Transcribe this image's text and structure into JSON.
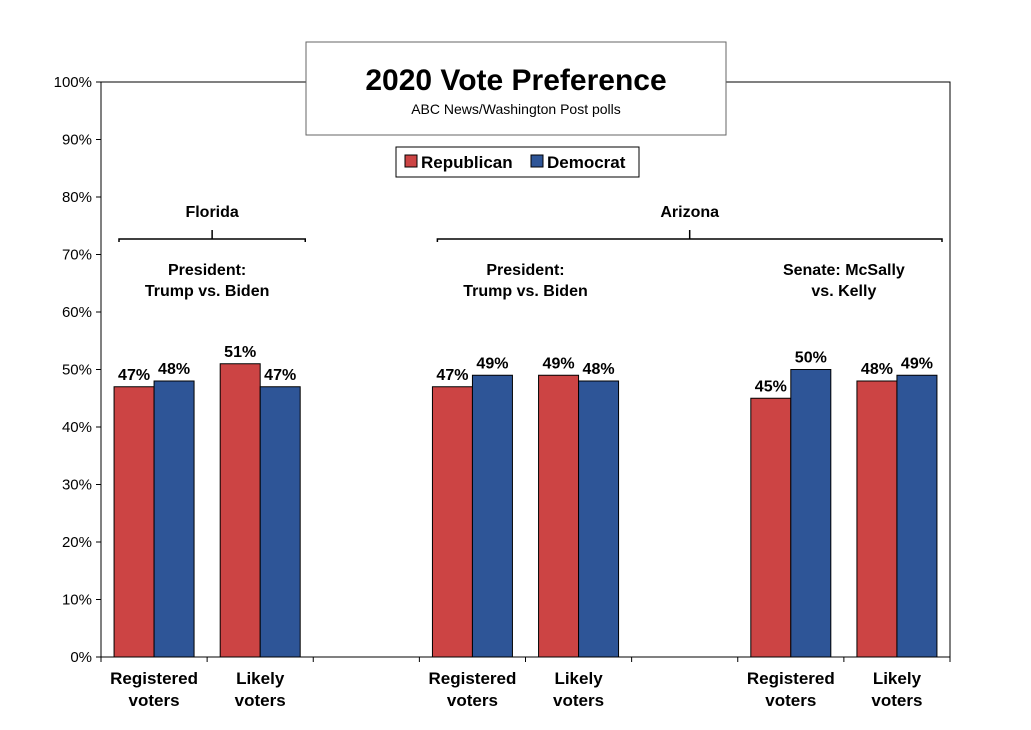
{
  "chart_data": {
    "type": "bar",
    "title": "2020 Vote Preference",
    "subtitle": "ABC News/Washington Post polls",
    "ylim": [
      0,
      100
    ],
    "y_ticks": [
      "0%",
      "10%",
      "20%",
      "30%",
      "40%",
      "50%",
      "60%",
      "70%",
      "80%",
      "90%",
      "100%"
    ],
    "legend": {
      "position": "top-center",
      "items": [
        {
          "name": "Republican",
          "color": "#cc4444"
        },
        {
          "name": "Democrat",
          "color": "#2e5597"
        }
      ]
    },
    "categories": [
      {
        "label": [
          "Registered",
          "voters"
        ]
      },
      {
        "label": [
          "Likely",
          "voters"
        ]
      },
      {
        "label": []
      },
      {
        "label": [
          "Registered",
          "voters"
        ]
      },
      {
        "label": [
          "Likely",
          "voters"
        ]
      },
      {
        "label": []
      },
      {
        "label": [
          "Registered",
          "voters"
        ]
      },
      {
        "label": [
          "Likely",
          "voters"
        ]
      }
    ],
    "series": [
      {
        "name": "Republican",
        "color": "#cc4444",
        "values": [
          47,
          51,
          null,
          47,
          49,
          null,
          45,
          48
        ],
        "labels": [
          "47%",
          "51%",
          "",
          "47%",
          "49%",
          "",
          "45%",
          "48%"
        ]
      },
      {
        "name": "Democrat",
        "color": "#2e5597",
        "values": [
          48,
          47,
          null,
          49,
          48,
          null,
          50,
          49
        ],
        "labels": [
          "48%",
          "47%",
          "",
          "49%",
          "48%",
          "",
          "50%",
          "49%"
        ]
      }
    ],
    "regions": [
      {
        "name": "Florida",
        "from": 0,
        "to": 1
      },
      {
        "name": "Arizona",
        "from": 3,
        "to": 7
      }
    ],
    "groups": [
      {
        "lines": [
          "President:",
          "Trump vs. Biden"
        ],
        "from": 0,
        "to": 1
      },
      {
        "lines": [
          "President:",
          "Trump vs. Biden"
        ],
        "from": 3,
        "to": 4
      },
      {
        "lines": [
          "Senate: McSally",
          "vs. Kelly"
        ],
        "from": 6,
        "to": 7
      }
    ]
  }
}
